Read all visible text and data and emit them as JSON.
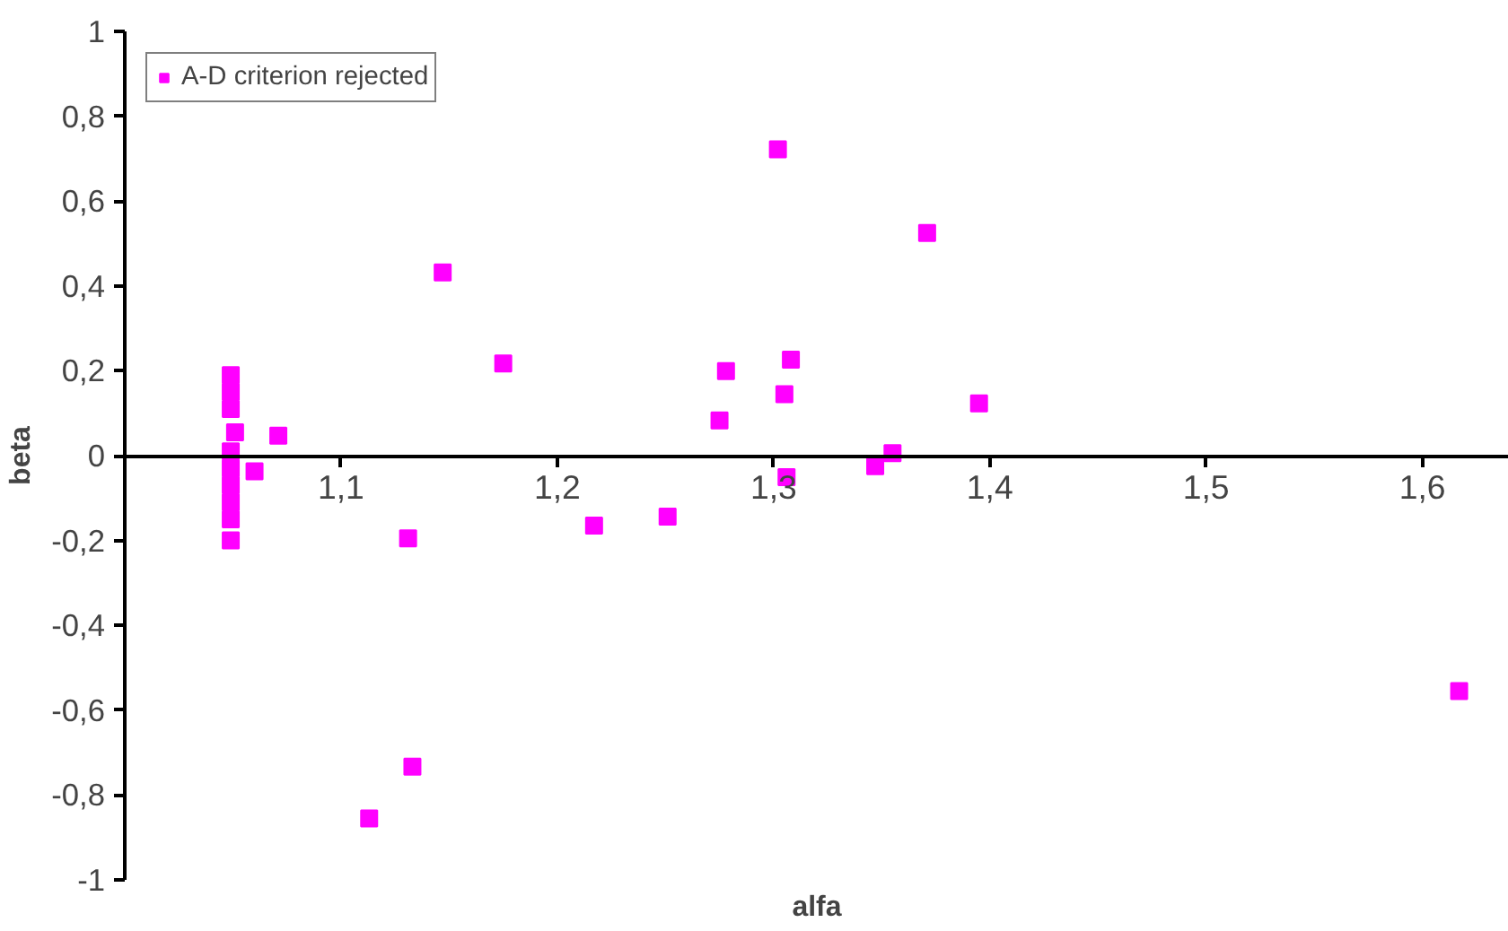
{
  "chart_data": {
    "type": "scatter",
    "xlabel": "alfa",
    "ylabel": "beta",
    "xlim": [
      1.0,
      1.64
    ],
    "ylim": [
      -1,
      1
    ],
    "xticks": [
      {
        "value": 1.1,
        "label": "1,1"
      },
      {
        "value": 1.2,
        "label": "1,2"
      },
      {
        "value": 1.3,
        "label": "1,3"
      },
      {
        "value": 1.4,
        "label": "1,4"
      },
      {
        "value": 1.5,
        "label": "1,5"
      },
      {
        "value": 1.6,
        "label": "1,6"
      }
    ],
    "yticks": [
      {
        "value": -1,
        "label": "-1"
      },
      {
        "value": -0.8,
        "label": "-0,8"
      },
      {
        "value": -0.6,
        "label": "-0,6"
      },
      {
        "value": -0.4,
        "label": "-0,4"
      },
      {
        "value": -0.2,
        "label": "-0,2"
      },
      {
        "value": 0,
        "label": "0"
      },
      {
        "value": 0.2,
        "label": "0,2"
      },
      {
        "value": 0.4,
        "label": "0,4"
      },
      {
        "value": 0.6,
        "label": "0,6"
      },
      {
        "value": 0.8,
        "label": "0,8"
      },
      {
        "value": 1,
        "label": "1"
      }
    ],
    "grid": false,
    "legend": "top left",
    "marker": "square",
    "series": [
      {
        "name": "A-D criterion rejected",
        "color": "#ff00ff",
        "x": [
          1.049,
          1.049,
          1.049,
          1.049,
          1.049,
          1.049,
          1.049,
          1.049,
          1.049,
          1.051,
          1.06,
          1.071,
          1.147,
          1.175,
          1.131,
          1.217,
          1.251,
          1.275,
          1.278,
          1.302,
          1.305,
          1.308,
          1.306,
          1.371,
          1.347,
          1.355,
          1.395,
          1.133,
          1.113,
          1.617
        ],
        "values": [
          0.19,
          0.15,
          0.11,
          0.01,
          -0.03,
          -0.07,
          -0.11,
          -0.15,
          -0.2,
          0.055,
          -0.037,
          0.047,
          0.432,
          0.217,
          -0.195,
          -0.165,
          -0.144,
          0.083,
          0.199,
          0.722,
          0.145,
          0.226,
          -0.051,
          0.525,
          -0.025,
          0.006,
          0.123,
          -0.733,
          -0.855,
          -0.555
        ]
      }
    ]
  }
}
